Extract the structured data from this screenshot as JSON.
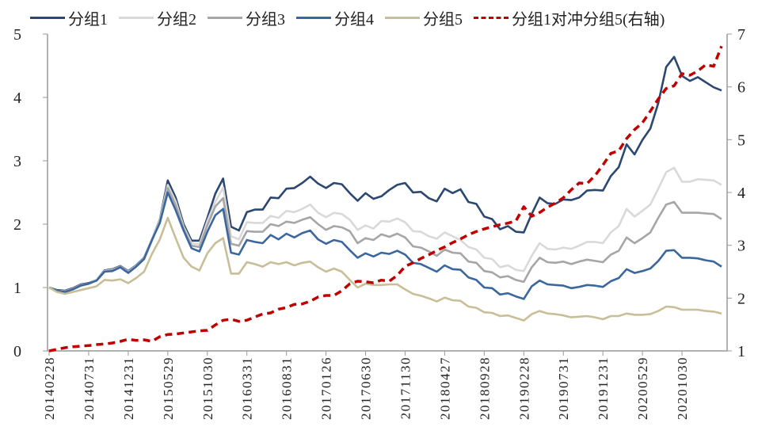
{
  "chart_data": {
    "type": "line",
    "title": "",
    "xlabel": "",
    "ylabel": "",
    "ylim": [
      0,
      5
    ],
    "y2lim": [
      1,
      7
    ],
    "yticks": [
      "0",
      "1",
      "2",
      "3",
      "4",
      "5"
    ],
    "y2ticks": [
      "1",
      "2",
      "3",
      "4",
      "5",
      "6",
      "7"
    ],
    "xtick_labels": [
      "20140228",
      "20140731",
      "20141231",
      "20150529",
      "20151030",
      "20160331",
      "20160831",
      "20170126",
      "20170630",
      "20171130",
      "20180427",
      "20180928",
      "20190228",
      "20190731",
      "20191231",
      "20200529",
      "20201030"
    ],
    "xtick_every": 5,
    "legend_position": "top",
    "grid": false,
    "series": [
      {
        "name": "分组1",
        "axis": "left",
        "color": "#2C4770",
        "dash": false,
        "values": [
          1.0,
          0.96,
          0.95,
          0.99,
          1.05,
          1.07,
          1.12,
          1.27,
          1.29,
          1.34,
          1.26,
          1.35,
          1.47,
          1.76,
          2.07,
          2.69,
          2.42,
          2.0,
          1.74,
          1.74,
          2.1,
          2.48,
          2.72,
          1.96,
          1.9,
          2.19,
          2.23,
          2.23,
          2.42,
          2.41,
          2.56,
          2.57,
          2.65,
          2.75,
          2.64,
          2.57,
          2.65,
          2.63,
          2.49,
          2.37,
          2.49,
          2.4,
          2.44,
          2.54,
          2.62,
          2.65,
          2.5,
          2.51,
          2.41,
          2.36,
          2.56,
          2.49,
          2.55,
          2.35,
          2.32,
          2.12,
          2.08,
          1.92,
          1.97,
          1.88,
          1.87,
          2.16,
          2.42,
          2.33,
          2.32,
          2.39,
          2.38,
          2.42,
          2.53,
          2.54,
          2.53,
          2.76,
          2.9,
          3.26,
          3.1,
          3.33,
          3.51,
          3.91,
          4.48,
          4.64,
          4.34,
          4.26,
          4.32,
          4.24,
          4.16,
          4.11
        ]
      },
      {
        "name": "分组2",
        "axis": "left",
        "color": "#D9D9D9",
        "dash": false,
        "values": [
          1.0,
          0.95,
          0.94,
          0.98,
          1.04,
          1.06,
          1.12,
          1.26,
          1.28,
          1.33,
          1.25,
          1.34,
          1.46,
          1.76,
          2.06,
          2.62,
          2.36,
          1.96,
          1.7,
          1.68,
          2.05,
          2.35,
          2.58,
          1.81,
          1.76,
          2.03,
          2.02,
          2.02,
          2.13,
          2.1,
          2.21,
          2.19,
          2.24,
          2.31,
          2.18,
          2.11,
          2.18,
          2.16,
          2.07,
          1.91,
          1.98,
          1.93,
          2.05,
          2.04,
          2.09,
          2.03,
          1.89,
          1.88,
          1.81,
          1.77,
          1.87,
          1.81,
          1.75,
          1.64,
          1.6,
          1.47,
          1.45,
          1.32,
          1.35,
          1.28,
          1.26,
          1.5,
          1.7,
          1.61,
          1.6,
          1.63,
          1.61,
          1.66,
          1.72,
          1.72,
          1.7,
          1.87,
          1.97,
          2.24,
          2.12,
          2.21,
          2.31,
          2.56,
          2.82,
          2.89,
          2.67,
          2.67,
          2.71,
          2.7,
          2.69,
          2.62
        ]
      },
      {
        "name": "分组3",
        "axis": "left",
        "color": "#A6A6A6",
        "dash": false,
        "values": [
          1.0,
          0.95,
          0.94,
          0.98,
          1.04,
          1.06,
          1.11,
          1.25,
          1.27,
          1.33,
          1.24,
          1.33,
          1.45,
          1.74,
          2.04,
          2.57,
          2.3,
          1.93,
          1.66,
          1.64,
          1.98,
          2.28,
          2.41,
          1.69,
          1.66,
          1.89,
          1.88,
          1.88,
          2.0,
          1.97,
          2.04,
          2.02,
          2.07,
          2.11,
          2.0,
          1.91,
          1.97,
          1.95,
          1.89,
          1.7,
          1.78,
          1.75,
          1.84,
          1.8,
          1.85,
          1.79,
          1.65,
          1.63,
          1.57,
          1.5,
          1.6,
          1.55,
          1.54,
          1.41,
          1.39,
          1.26,
          1.24,
          1.16,
          1.18,
          1.12,
          1.09,
          1.32,
          1.47,
          1.4,
          1.39,
          1.41,
          1.37,
          1.41,
          1.44,
          1.42,
          1.4,
          1.52,
          1.58,
          1.79,
          1.7,
          1.78,
          1.87,
          2.1,
          2.31,
          2.35,
          2.18,
          2.18,
          2.18,
          2.17,
          2.16,
          2.08
        ]
      },
      {
        "name": "分组4",
        "axis": "left",
        "color": "#3B679E",
        "dash": false,
        "values": [
          1.0,
          0.95,
          0.93,
          0.97,
          1.03,
          1.06,
          1.11,
          1.25,
          1.26,
          1.32,
          1.23,
          1.33,
          1.45,
          1.75,
          2.02,
          2.5,
          2.22,
          1.9,
          1.62,
          1.57,
          1.88,
          2.14,
          2.24,
          1.55,
          1.52,
          1.75,
          1.72,
          1.7,
          1.83,
          1.76,
          1.85,
          1.79,
          1.86,
          1.9,
          1.76,
          1.69,
          1.75,
          1.72,
          1.59,
          1.47,
          1.54,
          1.49,
          1.55,
          1.53,
          1.58,
          1.52,
          1.39,
          1.37,
          1.31,
          1.25,
          1.35,
          1.29,
          1.28,
          1.16,
          1.12,
          1.0,
          0.99,
          0.89,
          0.91,
          0.86,
          0.82,
          1.02,
          1.11,
          1.05,
          1.04,
          1.03,
          0.99,
          1.01,
          1.04,
          1.03,
          1.01,
          1.1,
          1.15,
          1.29,
          1.23,
          1.26,
          1.3,
          1.42,
          1.58,
          1.59,
          1.47,
          1.47,
          1.46,
          1.43,
          1.41,
          1.33
        ]
      },
      {
        "name": "分组5",
        "axis": "left",
        "color": "#C8BE98",
        "dash": false,
        "values": [
          1.0,
          0.93,
          0.9,
          0.93,
          0.96,
          0.99,
          1.02,
          1.12,
          1.11,
          1.13,
          1.07,
          1.15,
          1.25,
          1.53,
          1.76,
          2.1,
          1.78,
          1.47,
          1.33,
          1.27,
          1.54,
          1.7,
          1.78,
          1.22,
          1.22,
          1.4,
          1.37,
          1.33,
          1.4,
          1.37,
          1.4,
          1.35,
          1.39,
          1.41,
          1.32,
          1.25,
          1.3,
          1.25,
          1.12,
          1.0,
          1.06,
          1.04,
          1.04,
          1.05,
          1.05,
          0.97,
          0.9,
          0.87,
          0.83,
          0.78,
          0.84,
          0.8,
          0.79,
          0.7,
          0.68,
          0.61,
          0.6,
          0.55,
          0.56,
          0.52,
          0.48,
          0.58,
          0.63,
          0.59,
          0.58,
          0.56,
          0.53,
          0.54,
          0.55,
          0.53,
          0.5,
          0.55,
          0.55,
          0.59,
          0.57,
          0.57,
          0.58,
          0.63,
          0.7,
          0.69,
          0.65,
          0.65,
          0.65,
          0.63,
          0.62,
          0.59
        ]
      },
      {
        "name": "分组1对冲分组5(右轴)",
        "axis": "right",
        "color": "#C00000",
        "dash": true,
        "values": [
          1.0,
          1.03,
          1.06,
          1.08,
          1.09,
          1.1,
          1.12,
          1.13,
          1.15,
          1.18,
          1.22,
          1.2,
          1.21,
          1.18,
          1.27,
          1.31,
          1.32,
          1.34,
          1.36,
          1.38,
          1.39,
          1.49,
          1.58,
          1.6,
          1.56,
          1.58,
          1.64,
          1.7,
          1.72,
          1.79,
          1.82,
          1.88,
          1.89,
          1.94,
          2.02,
          2.05,
          2.05,
          2.14,
          2.27,
          2.32,
          2.31,
          2.29,
          2.34,
          2.32,
          2.43,
          2.6,
          2.67,
          2.75,
          2.82,
          2.9,
          2.97,
          3.05,
          3.12,
          3.2,
          3.26,
          3.31,
          3.35,
          3.39,
          3.42,
          3.46,
          3.73,
          3.55,
          3.62,
          3.72,
          3.8,
          3.9,
          4.05,
          4.18,
          4.17,
          4.32,
          4.52,
          4.74,
          4.79,
          5.02,
          5.19,
          5.32,
          5.54,
          5.77,
          5.97,
          6.02,
          6.25,
          6.22,
          6.3,
          6.42,
          6.39,
          6.77
        ]
      }
    ]
  }
}
